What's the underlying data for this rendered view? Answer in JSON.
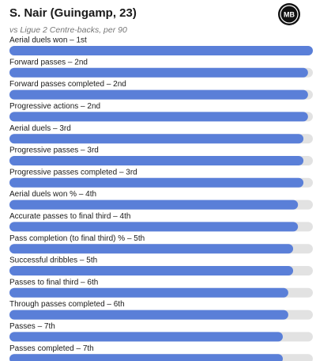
{
  "chart_data": {
    "type": "hbar",
    "title": "S. Nair (Guingamp, 23)",
    "subtitle": "vs Ligue 2 Centre-backs, per 90",
    "logo": "MB",
    "categories": [
      "Aerial duels won – 1st",
      "Forward passes – 2nd",
      "Forward passes completed – 2nd",
      "Progressive actions – 2nd",
      "Aerial duels – 3rd",
      "Progressive passes – 3rd",
      "Progressive passes completed – 3rd",
      "Aerial duels won % – 4th",
      "Accurate passes to final third – 4th",
      "Pass completion (to final third) % – 5th",
      "Successful dribbles – 5th",
      "Passes to final third – 6th",
      "Through passes completed – 6th",
      "Passes – 7th",
      "Passes completed – 7th"
    ],
    "values": [
      100,
      98.4,
      98.4,
      98.4,
      96.9,
      96.9,
      96.9,
      95.1,
      95.1,
      93.5,
      93.5,
      91.9,
      91.9,
      90.1,
      90.1
    ],
    "xlim": [
      0,
      100
    ],
    "color": "#5a7fd8",
    "track_color": "#e2e2e2"
  }
}
